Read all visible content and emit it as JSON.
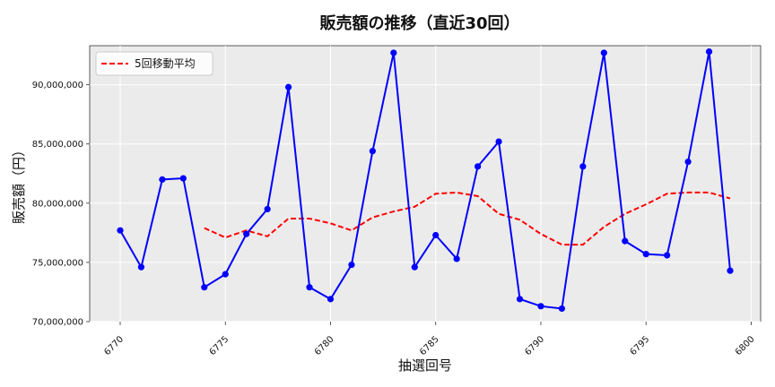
{
  "chart_data": {
    "type": "line",
    "title": "販売額の推移（直近30回）",
    "xlabel": "抽選回号",
    "ylabel": "販売額（円）",
    "x": [
      6770,
      6771,
      6772,
      6773,
      6774,
      6775,
      6776,
      6777,
      6778,
      6779,
      6780,
      6781,
      6782,
      6783,
      6784,
      6785,
      6786,
      6787,
      6788,
      6789,
      6790,
      6791,
      6792,
      6793,
      6794,
      6795,
      6796,
      6797,
      6798,
      6799
    ],
    "series": [
      {
        "name": "",
        "color": "#0000ff",
        "style": "solid-with-markers",
        "values": [
          77700000,
          74600000,
          82000000,
          82100000,
          72900000,
          74000000,
          77400000,
          79500000,
          89800000,
          72900000,
          71900000,
          74800000,
          84400000,
          92700000,
          74600000,
          77300000,
          75300000,
          83100000,
          85200000,
          71900000,
          71300000,
          71100000,
          83100000,
          92700000,
          76800000,
          75700000,
          75600000,
          83500000,
          92800000,
          74300000
        ]
      },
      {
        "name": "5回移動平均",
        "color": "#ff0000",
        "style": "dashed",
        "values": [
          null,
          null,
          null,
          null,
          77900000,
          77100000,
          77700000,
          77200000,
          78700000,
          78700000,
          78300000,
          77700000,
          78800000,
          79300000,
          79700000,
          80800000,
          80900000,
          80600000,
          79100000,
          78600000,
          77400000,
          76500000,
          76500000,
          78000000,
          79100000,
          79900000,
          80800000,
          80900000,
          80900000,
          80400000
        ]
      }
    ],
    "xticks": [
      6770,
      6775,
      6780,
      6785,
      6790,
      6795,
      6800
    ],
    "xtick_labels": [
      "6770",
      "6775",
      "6780",
      "6785",
      "6790",
      "6795",
      "6800"
    ],
    "yticks": [
      70000000,
      75000000,
      80000000,
      85000000,
      90000000
    ],
    "ytick_labels": [
      "70,000,000",
      "75,000,000",
      "80,000,000",
      "85,000,000",
      "90,000,000"
    ],
    "xlim": [
      6768.55,
      6800.45
    ],
    "ylim": [
      70000000,
      93300000
    ],
    "grid": true,
    "legend_position": "top-left",
    "colors": {
      "plot_bg": "#ebebeb",
      "grid": "#ffffff"
    }
  }
}
